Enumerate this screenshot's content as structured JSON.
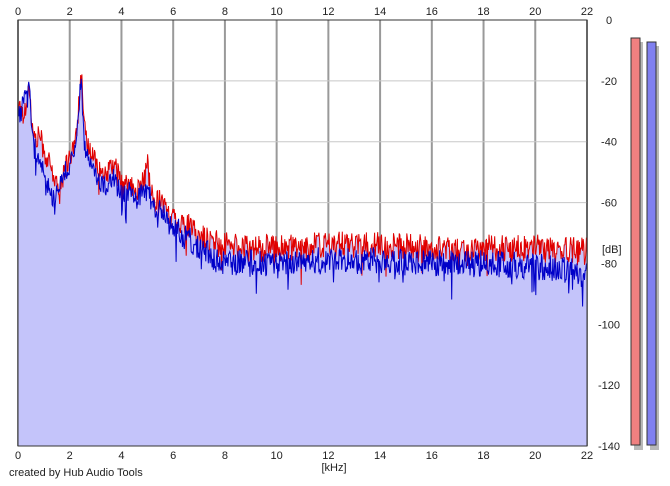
{
  "footer": {
    "credit": "created by Hub Audio Tools"
  },
  "chart_data": {
    "type": "area",
    "xlabel": "[kHz]",
    "ylabel": "[dB]",
    "xlim": [
      0,
      22
    ],
    "ylim": [
      -140,
      0
    ],
    "xticks": [
      0,
      2,
      4,
      6,
      8,
      10,
      12,
      14,
      16,
      18,
      20,
      22
    ],
    "yticks": [
      0,
      -20,
      -40,
      -60,
      -80,
      -100,
      -120,
      -140
    ],
    "grid": true,
    "series": [
      {
        "color": "#e00000",
        "points": [
          [
            0,
            -30
          ],
          [
            0.1,
            -27
          ],
          [
            0.2,
            -33
          ],
          [
            0.35,
            -25
          ],
          [
            0.45,
            -22
          ],
          [
            0.55,
            -36
          ],
          [
            0.7,
            -40
          ],
          [
            0.85,
            -37
          ],
          [
            1.0,
            -44
          ],
          [
            1.2,
            -47
          ],
          [
            1.4,
            -52
          ],
          [
            1.6,
            -57
          ],
          [
            1.8,
            -49
          ],
          [
            2.0,
            -45
          ],
          [
            2.2,
            -41
          ],
          [
            2.35,
            -28
          ],
          [
            2.45,
            -18
          ],
          [
            2.55,
            -35
          ],
          [
            2.7,
            -42
          ],
          [
            2.9,
            -44
          ],
          [
            3.1,
            -48
          ],
          [
            3.3,
            -52
          ],
          [
            3.5,
            -50
          ],
          [
            3.7,
            -47
          ],
          [
            3.9,
            -51
          ],
          [
            4.1,
            -55
          ],
          [
            4.3,
            -53
          ],
          [
            4.5,
            -57
          ],
          [
            4.7,
            -55
          ],
          [
            4.9,
            -52
          ],
          [
            5.0,
            -46
          ],
          [
            5.1,
            -55
          ],
          [
            5.3,
            -60
          ],
          [
            5.5,
            -58
          ],
          [
            5.7,
            -62
          ],
          [
            5.9,
            -65
          ],
          [
            6.1,
            -64
          ],
          [
            6.3,
            -67
          ],
          [
            6.6,
            -68
          ],
          [
            7.0,
            -71
          ],
          [
            7.5,
            -73
          ],
          [
            8.0,
            -74
          ],
          [
            9.0,
            -75
          ],
          [
            10.0,
            -75
          ],
          [
            12.0,
            -74
          ],
          [
            14.0,
            -74
          ],
          [
            16.0,
            -75
          ],
          [
            18.0,
            -75
          ],
          [
            20.0,
            -75
          ],
          [
            22.0,
            -76
          ]
        ]
      },
      {
        "color": "#0000c8",
        "points": [
          [
            0,
            -28
          ],
          [
            0.1,
            -31
          ],
          [
            0.2,
            -27
          ],
          [
            0.3,
            -24
          ],
          [
            0.4,
            -19
          ],
          [
            0.5,
            -30
          ],
          [
            0.6,
            -40
          ],
          [
            0.8,
            -45
          ],
          [
            1.0,
            -50
          ],
          [
            1.2,
            -55
          ],
          [
            1.4,
            -59
          ],
          [
            1.6,
            -54
          ],
          [
            1.8,
            -50
          ],
          [
            2.0,
            -48
          ],
          [
            2.2,
            -44
          ],
          [
            2.35,
            -28
          ],
          [
            2.45,
            -18
          ],
          [
            2.55,
            -40
          ],
          [
            2.7,
            -45
          ],
          [
            2.9,
            -47
          ],
          [
            3.1,
            -52
          ],
          [
            3.3,
            -55
          ],
          [
            3.5,
            -53
          ],
          [
            3.7,
            -52
          ],
          [
            3.9,
            -56
          ],
          [
            4.1,
            -58
          ],
          [
            4.3,
            -56
          ],
          [
            4.5,
            -60
          ],
          [
            4.7,
            -58
          ],
          [
            4.9,
            -56
          ],
          [
            5.1,
            -58
          ],
          [
            5.3,
            -63
          ],
          [
            5.5,
            -61
          ],
          [
            5.7,
            -65
          ],
          [
            5.9,
            -68
          ],
          [
            6.1,
            -67
          ],
          [
            6.3,
            -70
          ],
          [
            6.6,
            -72
          ],
          [
            7.0,
            -75
          ],
          [
            7.5,
            -78
          ],
          [
            8.0,
            -80
          ],
          [
            9.0,
            -80
          ],
          [
            10.0,
            -80
          ],
          [
            12.0,
            -79
          ],
          [
            14.0,
            -79
          ],
          [
            16.0,
            -80
          ],
          [
            18.0,
            -80
          ],
          [
            20.0,
            -81
          ],
          [
            21.0,
            -82
          ],
          [
            22.0,
            -84
          ]
        ]
      }
    ],
    "level_meters": [
      {
        "color": "#f08080"
      },
      {
        "color": "#8080f0"
      }
    ]
  }
}
